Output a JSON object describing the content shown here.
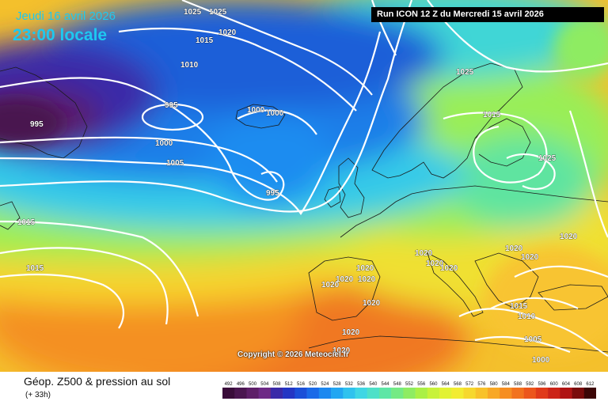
{
  "header": {
    "valid_date": "Jeudi 16 avril 2026",
    "valid_time": "23:00 locale",
    "run_info": "Run ICON 12 Z du Mercredi 15 avril 2026"
  },
  "copyright": "Copyright © 2026 Meteociel.fr",
  "footer": {
    "title": "Géop. Z500 & pression au sol",
    "lead": "(+ 33h)"
  },
  "legend": {
    "levels": [
      "492",
      "496",
      "500",
      "504",
      "508",
      "512",
      "516",
      "520",
      "524",
      "528",
      "532",
      "536",
      "540",
      "544",
      "548",
      "552",
      "556",
      "560",
      "564",
      "568",
      "572",
      "576",
      "580",
      "584",
      "588",
      "592",
      "596",
      "600",
      "604",
      "608",
      "612"
    ],
    "colors": [
      "#3a0d3a",
      "#4b1650",
      "#5e1f68",
      "#6e2a86",
      "#3a2aa8",
      "#2436c4",
      "#1b4fd8",
      "#1a6ae8",
      "#1c88f0",
      "#22a6f2",
      "#2fc2ee",
      "#3fd6e4",
      "#4ee0c8",
      "#5ee6a6",
      "#74ea84",
      "#8eec62",
      "#aaf046",
      "#c8f23a",
      "#e2f234",
      "#f2ec32",
      "#f6d82e",
      "#f8c22a",
      "#f8a826",
      "#f68e22",
      "#f2721e",
      "#ec561c",
      "#e03a1a",
      "#cc2418",
      "#b01414",
      "#7a0c0c",
      "#3c0606"
    ]
  },
  "pressure_labels": [
    {
      "text": "1025"
    },
    {
      "text": "1025"
    },
    {
      "text": "1015"
    },
    {
      "text": "1020"
    },
    {
      "text": "1010"
    },
    {
      "text": "995"
    },
    {
      "text": "995"
    },
    {
      "text": "1000"
    },
    {
      "text": "1000"
    },
    {
      "text": "1000"
    },
    {
      "text": "1005"
    },
    {
      "text": "995"
    },
    {
      "text": "1015"
    },
    {
      "text": "1015"
    },
    {
      "text": "1025"
    },
    {
      "text": "1025"
    },
    {
      "text": "1015"
    },
    {
      "text": "1020"
    },
    {
      "text": "1020"
    },
    {
      "text": "1020"
    },
    {
      "text": "1020"
    },
    {
      "text": "1020"
    },
    {
      "text": "1020"
    },
    {
      "text": "1020"
    },
    {
      "text": "1020"
    },
    {
      "text": "1020"
    },
    {
      "text": "1020"
    },
    {
      "text": "1020"
    },
    {
      "text": "1015"
    },
    {
      "text": "1010"
    },
    {
      "text": "1005"
    },
    {
      "text": "1000"
    },
    {
      "text": "1020"
    },
    {
      "text": "1020"
    }
  ]
}
